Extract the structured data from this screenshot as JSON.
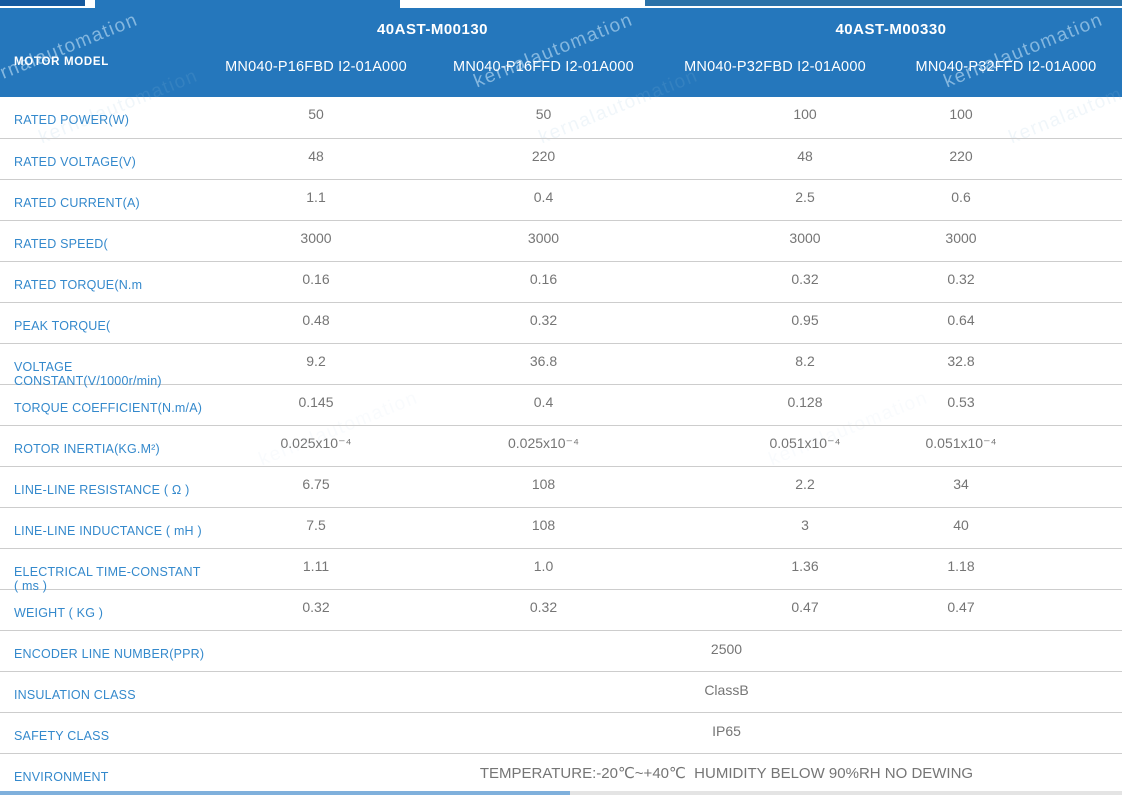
{
  "watermark": {
    "text": "kernalautomation"
  },
  "colors": {
    "header_blue": "#2577bc",
    "label_blue": "#3489cc",
    "value_gray": "#757575",
    "row_line_gray": "#cdcdcd"
  },
  "header": {
    "motor_model_label": "MOTOR MODEL",
    "groups": [
      {
        "title": "40AST-M00130",
        "models": [
          "MN040-P16FBD I2-01A000",
          "MN040-P16FFD I2-01A000"
        ]
      },
      {
        "title": "40AST-M00330",
        "models": [
          "MN040-P32FBD I2-01A000",
          "MN040-P32FFD I2-01A000"
        ]
      }
    ]
  },
  "table": {
    "rows": [
      {
        "label": "RATED POWER(W)",
        "values": [
          "50",
          "50",
          "100",
          "100"
        ]
      },
      {
        "label": "RATED VOLTAGE(V)",
        "values": [
          "48",
          "220",
          "48",
          "220"
        ]
      },
      {
        "label": "RATED CURRENT(A)",
        "values": [
          "1.1",
          "0.4",
          "2.5",
          "0.6"
        ]
      },
      {
        "label": "RATED SPEED(",
        "values": [
          "3000",
          "3000",
          "3000",
          "3000"
        ]
      },
      {
        "label": "RATED TORQUE(N.m",
        "values": [
          "0.16",
          "0.16",
          "0.32",
          "0.32"
        ]
      },
      {
        "label": "PEAK TORQUE(",
        "values": [
          "0.48",
          "0.32",
          "0.95",
          "0.64"
        ]
      },
      {
        "label": "VOLTAGE CONSTANT(V/1000r/min)",
        "values": [
          "9.2",
          "36.8",
          "8.2",
          "32.8"
        ]
      },
      {
        "label": "TORQUE COEFFICIENT(N.m/A)",
        "values": [
          "0.145",
          "0.4",
          "0.128",
          "0.53"
        ]
      },
      {
        "label": "ROTOR INERTIA(KG.M²)",
        "values": [
          "0.025x10⁻⁴",
          "0.025x10⁻⁴",
          "0.051x10⁻⁴",
          "0.051x10⁻⁴"
        ]
      },
      {
        "label": "LINE-LINE RESISTANCE ( Ω )",
        "values": [
          "6.75",
          "108",
          "2.2",
          "34"
        ]
      },
      {
        "label": "LINE-LINE INDUCTANCE ( mH )",
        "values": [
          "7.5",
          "108",
          "3",
          "40"
        ]
      },
      {
        "label": "ELECTRICAL TIME-CONSTANT ( ms )",
        "values": [
          "1.11",
          "1.0",
          "1.36",
          "1.18"
        ]
      },
      {
        "label": "WEIGHT ( KG )",
        "values": [
          "0.32",
          "0.32",
          "0.47",
          "0.47"
        ]
      },
      {
        "label": "ENCODER LINE NUMBER(PPR)",
        "span": "2500"
      },
      {
        "label": "INSULATION CLASS",
        "span": "ClassB"
      },
      {
        "label": "SAFETY CLASS",
        "span": "IP65"
      },
      {
        "label": "ENVIRONMENT",
        "span": "TEMPERATURE:-20℃~+40℃  HUMIDITY BELOW 90%RH NO DEWING"
      }
    ]
  }
}
